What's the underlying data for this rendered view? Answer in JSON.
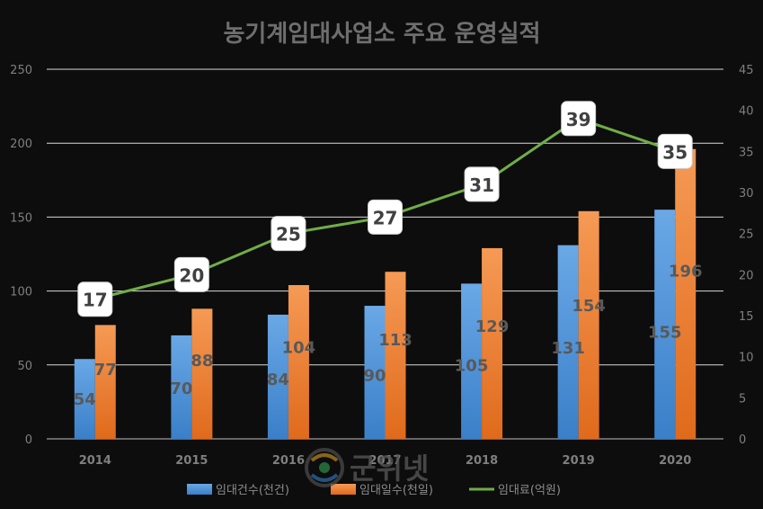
{
  "chart_data": {
    "type": "bar",
    "title": "농기계임대사업소 주요 운영실적",
    "categories": [
      "2014",
      "2015",
      "2016",
      "2017",
      "2018",
      "2019",
      "2020"
    ],
    "series": [
      {
        "name": "임대건수(천건)",
        "type": "bar",
        "axis": "left",
        "color": "#5b9bd5",
        "values": [
          54,
          70,
          84,
          90,
          105,
          131,
          155
        ],
        "labels": [
          "54",
          "70",
          "84",
          "90",
          "105",
          "131",
          "155"
        ]
      },
      {
        "name": "임대일수(천일)",
        "type": "bar",
        "axis": "left",
        "color": "#ed7d31",
        "values": [
          77,
          88,
          104,
          113,
          129,
          154,
          196
        ],
        "labels": [
          "77",
          "88",
          "104",
          "113",
          "129",
          "154",
          "196"
        ]
      },
      {
        "name": "임대료(억원)",
        "type": "line",
        "axis": "right",
        "color": "#70ad47",
        "values": [
          17,
          20,
          25,
          27,
          31,
          39,
          35
        ],
        "labels": [
          "17",
          "20",
          "25",
          "27",
          "31",
          "39",
          "35"
        ]
      }
    ],
    "ylim_left": [
      0,
      250
    ],
    "ylim_right": [
      0,
      45
    ],
    "left_ticks": [
      "0",
      "50",
      "100",
      "150",
      "200",
      "250"
    ],
    "right_ticks": [
      "0",
      "5",
      "10",
      "15",
      "20",
      "25",
      "30",
      "35",
      "40",
      "45"
    ],
    "grid": true,
    "legend_position": "bottom"
  },
  "watermark": {
    "text": "군위넷"
  }
}
